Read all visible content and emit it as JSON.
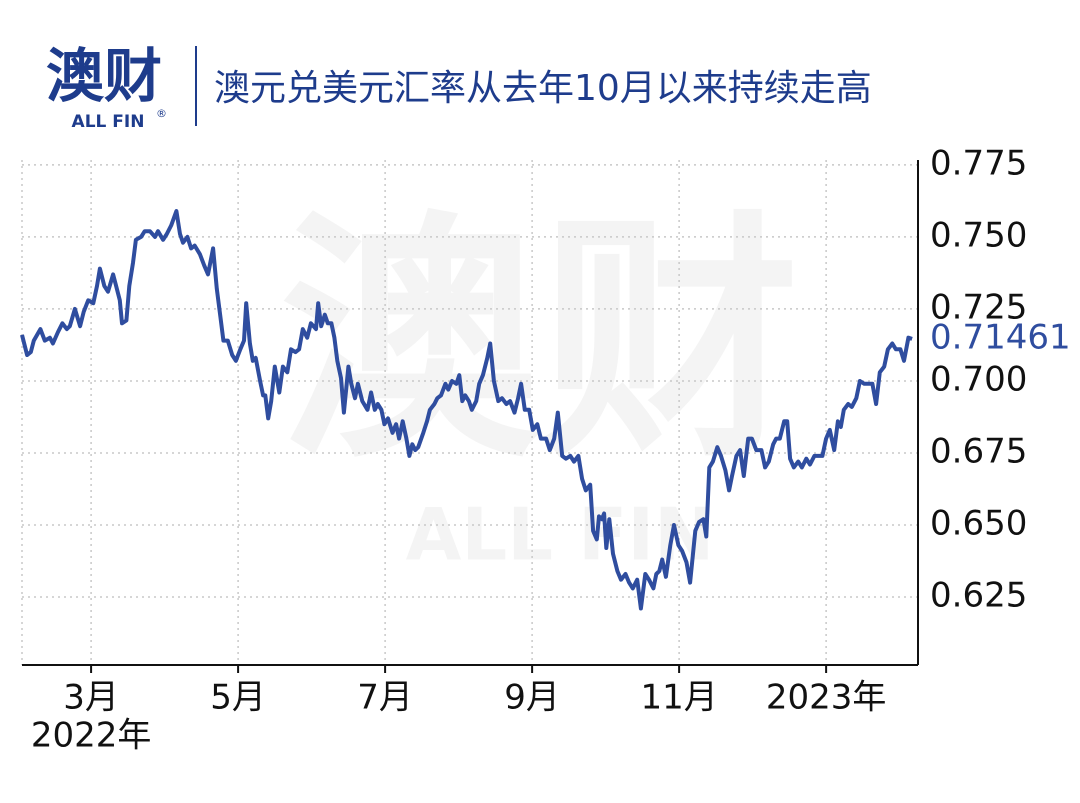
{
  "logo": {
    "text": "澳财",
    "subtext": "ALL FIN",
    "mark": "®"
  },
  "chart_data": {
    "type": "line",
    "title": "澳元兑美元汇率从去年10月以来持续走高",
    "x": [
      2.06,
      2.13,
      2.18,
      2.22,
      2.31,
      2.37,
      2.44,
      2.48,
      2.55,
      2.61,
      2.67,
      2.71,
      2.78,
      2.85,
      2.9,
      2.96,
      3.03,
      3.08,
      3.12,
      3.18,
      3.23,
      3.3,
      3.34,
      3.39,
      3.42,
      3.48,
      3.52,
      3.57,
      3.61,
      3.68,
      3.73,
      3.8,
      3.87,
      3.91,
      3.98,
      4.03,
      4.09,
      4.16,
      4.21,
      4.25,
      4.31,
      4.36,
      4.41,
      4.48,
      4.54,
      4.59,
      4.66,
      4.71,
      4.76,
      4.8,
      4.86,
      4.92,
      4.97,
      5.03,
      5.08,
      5.11,
      5.16,
      5.2,
      5.24,
      5.3,
      5.34,
      5.37,
      5.41,
      5.45,
      5.5,
      5.56,
      5.61,
      5.67,
      5.72,
      5.78,
      5.83,
      5.88,
      5.94,
      5.99,
      6.06,
      6.09,
      6.13,
      6.18,
      6.22,
      6.27,
      6.31,
      6.35,
      6.4,
      6.44,
      6.5,
      6.54,
      6.59,
      6.63,
      6.69,
      6.76,
      6.81,
      6.86,
      6.9,
      6.95,
      6.99,
      7.04,
      7.1,
      7.15,
      7.19,
      7.24,
      7.29,
      7.33,
      7.37,
      7.41,
      7.45,
      7.52,
      7.57,
      7.61,
      7.67,
      7.71,
      7.76,
      7.82,
      7.86,
      7.91,
      7.97,
      8.01,
      8.05,
      8.09,
      8.14,
      8.18,
      8.24,
      8.28,
      8.33,
      8.39,
      8.43,
      8.48,
      8.54,
      8.59,
      8.65,
      8.7,
      8.76,
      8.81,
      8.85,
      8.9,
      8.96,
      9.01,
      9.07,
      9.12,
      9.19,
      9.24,
      9.3,
      9.35,
      9.41,
      9.46,
      9.52,
      9.57,
      9.63,
      9.68,
      9.73,
      9.79,
      9.83,
      9.88,
      9.91,
      9.95,
      9.98,
      10.01,
      10.05,
      10.1,
      10.16,
      10.21,
      10.27,
      10.32,
      10.37,
      10.43,
      10.48,
      10.54,
      10.59,
      10.65,
      10.69,
      10.73,
      10.77,
      10.82,
      10.88,
      10.93,
      10.99,
      11.04,
      11.1,
      11.15,
      11.22,
      11.27,
      11.33,
      11.37,
      11.41,
      11.46,
      11.52,
      11.57,
      11.63,
      11.68,
      11.72,
      11.78,
      11.83,
      11.88,
      11.94,
      11.99,
      12.05,
      12.12,
      12.17,
      12.22,
      12.28,
      12.32,
      12.37,
      12.43,
      12.47,
      12.51,
      12.56,
      12.62,
      12.67,
      12.73,
      12.78,
      12.84,
      12.89,
      12.95,
      13.0,
      13.05,
      13.11,
      13.16,
      13.2,
      13.24,
      13.3,
      13.35,
      13.41,
      13.46,
      13.52,
      13.57,
      13.63,
      13.68,
      13.73,
      13.79,
      13.84,
      13.9,
      13.95,
      14.01,
      14.06,
      14.12,
      14.17
    ],
    "series": [
      {
        "color": "#2f4d9f",
        "values": [
          0.716,
          0.709,
          0.71,
          0.714,
          0.718,
          0.714,
          0.715,
          0.713,
          0.717,
          0.72,
          0.718,
          0.719,
          0.725,
          0.719,
          0.724,
          0.728,
          0.727,
          0.733,
          0.739,
          0.733,
          0.731,
          0.737,
          0.733,
          0.728,
          0.72,
          0.721,
          0.733,
          0.741,
          0.749,
          0.75,
          0.752,
          0.752,
          0.75,
          0.752,
          0.749,
          0.751,
          0.754,
          0.759,
          0.751,
          0.748,
          0.75,
          0.746,
          0.747,
          0.744,
          0.74,
          0.737,
          0.746,
          0.732,
          0.722,
          0.714,
          0.714,
          0.709,
          0.707,
          0.711,
          0.714,
          0.727,
          0.713,
          0.707,
          0.708,
          0.7,
          0.695,
          0.695,
          0.687,
          0.693,
          0.705,
          0.696,
          0.705,
          0.703,
          0.711,
          0.71,
          0.711,
          0.718,
          0.715,
          0.72,
          0.718,
          0.727,
          0.719,
          0.723,
          0.72,
          0.72,
          0.715,
          0.707,
          0.701,
          0.689,
          0.705,
          0.699,
          0.694,
          0.699,
          0.693,
          0.69,
          0.696,
          0.69,
          0.692,
          0.69,
          0.685,
          0.687,
          0.682,
          0.685,
          0.68,
          0.686,
          0.68,
          0.674,
          0.678,
          0.676,
          0.677,
          0.682,
          0.686,
          0.69,
          0.692,
          0.694,
          0.695,
          0.699,
          0.697,
          0.7,
          0.699,
          0.702,
          0.693,
          0.695,
          0.693,
          0.69,
          0.693,
          0.699,
          0.702,
          0.708,
          0.713,
          0.7,
          0.693,
          0.694,
          0.692,
          0.693,
          0.689,
          0.694,
          0.699,
          0.69,
          0.69,
          0.683,
          0.685,
          0.68,
          0.68,
          0.676,
          0.68,
          0.689,
          0.674,
          0.673,
          0.674,
          0.672,
          0.674,
          0.666,
          0.662,
          0.664,
          0.648,
          0.645,
          0.653,
          0.652,
          0.654,
          0.642,
          0.652,
          0.64,
          0.634,
          0.631,
          0.633,
          0.63,
          0.628,
          0.631,
          0.621,
          0.633,
          0.631,
          0.628,
          0.633,
          0.634,
          0.638,
          0.632,
          0.643,
          0.65,
          0.643,
          0.641,
          0.637,
          0.63,
          0.648,
          0.651,
          0.652,
          0.646,
          0.67,
          0.672,
          0.677,
          0.674,
          0.669,
          0.662,
          0.667,
          0.674,
          0.676,
          0.667,
          0.68,
          0.68,
          0.676,
          0.676,
          0.67,
          0.672,
          0.678,
          0.68,
          0.68,
          0.686,
          0.686,
          0.673,
          0.67,
          0.672,
          0.67,
          0.673,
          0.671,
          0.674,
          0.674,
          0.674,
          0.68,
          0.683,
          0.676,
          0.686,
          0.684,
          0.69,
          0.692,
          0.691,
          0.694,
          0.7,
          0.699,
          0.699,
          0.699,
          0.692,
          0.703,
          0.705,
          0.711,
          0.713,
          0.711,
          0.711,
          0.707,
          0.715,
          0.71461
        ]
      }
    ],
    "xlim": [
      2.06,
      14.25
    ],
    "xticks": [
      {
        "value": 3,
        "label": "3月"
      },
      {
        "value": 5,
        "label": "5月"
      },
      {
        "value": 7,
        "label": "7月"
      },
      {
        "value": 9,
        "label": "9月"
      },
      {
        "value": 11,
        "label": "11月"
      },
      {
        "value": 13,
        "label": "2023年"
      }
    ],
    "year_label": "2022年",
    "ylim": [
      0.6014,
      0.7767
    ],
    "yticks": [
      0.775,
      {
        "value": 0.75,
        "label": "0.750"
      },
      0.725,
      {
        "value": 0.7,
        "label": "0.700"
      },
      0.675,
      {
        "value": 0.65,
        "label": "0.650"
      },
      0.625
    ],
    "grid": true
  }
}
